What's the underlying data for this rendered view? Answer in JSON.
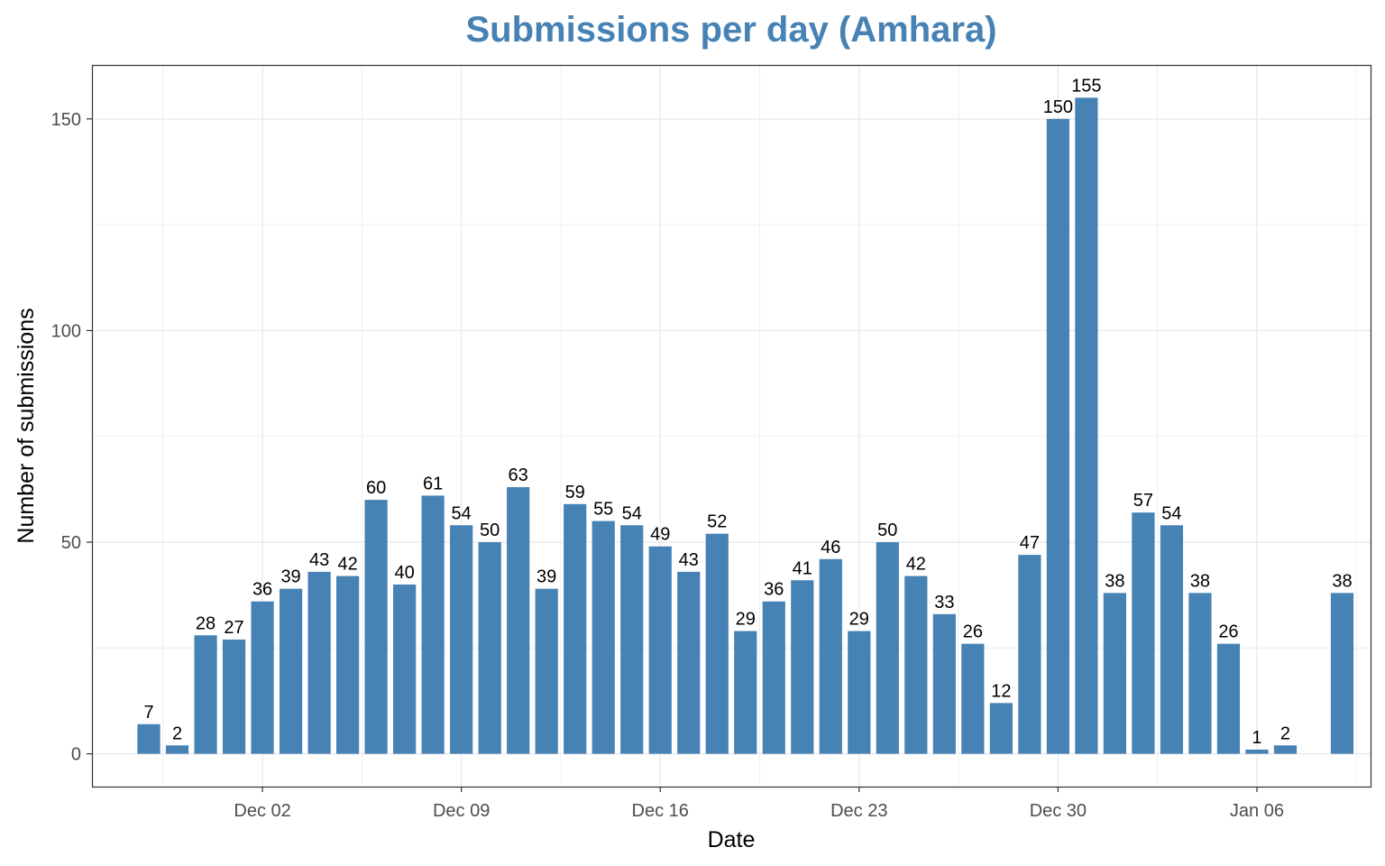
{
  "chart_data": {
    "type": "bar",
    "title": "Submissions per day (Amhara)",
    "xlabel": "Date",
    "ylabel": "Number of submissions",
    "x": [
      "2022-11-28",
      "2022-11-29",
      "2022-11-30",
      "2022-12-01",
      "2022-12-02",
      "2022-12-03",
      "2022-12-04",
      "2022-12-05",
      "2022-12-06",
      "2022-12-07",
      "2022-12-08",
      "2022-12-09",
      "2022-12-10",
      "2022-12-11",
      "2022-12-12",
      "2022-12-13",
      "2022-12-14",
      "2022-12-15",
      "2022-12-16",
      "2022-12-17",
      "2022-12-18",
      "2022-12-19",
      "2022-12-20",
      "2022-12-21",
      "2022-12-22",
      "2022-12-23",
      "2022-12-24",
      "2022-12-25",
      "2022-12-26",
      "2022-12-27",
      "2022-12-28",
      "2022-12-29",
      "2022-12-30",
      "2022-12-31",
      "2023-01-01",
      "2023-01-02",
      "2023-01-03",
      "2023-01-04",
      "2023-01-05",
      "2023-01-06",
      "2023-01-07",
      "2023-01-09"
    ],
    "values": [
      7,
      2,
      28,
      27,
      36,
      39,
      43,
      42,
      60,
      40,
      61,
      54,
      50,
      63,
      39,
      59,
      55,
      54,
      49,
      43,
      52,
      29,
      36,
      41,
      46,
      29,
      50,
      42,
      33,
      26,
      12,
      47,
      150,
      155,
      38,
      57,
      54,
      38,
      26,
      1,
      2,
      38
    ],
    "x_ticks": [
      {
        "date": "2022-12-02",
        "label": "Dec 02"
      },
      {
        "date": "2022-12-09",
        "label": "Dec 09"
      },
      {
        "date": "2022-12-16",
        "label": "Dec 16"
      },
      {
        "date": "2022-12-23",
        "label": "Dec 23"
      },
      {
        "date": "2022-12-30",
        "label": "Dec 30"
      },
      {
        "date": "2023-01-06",
        "label": "Jan 06"
      }
    ],
    "y_ticks": [
      0,
      50,
      100,
      150
    ],
    "ylim": [
      -7.75,
      162.75
    ],
    "xlim": [
      "2022-11-26",
      "2023-01-10"
    ],
    "grid": true,
    "colors": {
      "bar": "#4682b4",
      "title": "#4682b4",
      "grid": "#ebebeb",
      "panel_border": "#333333"
    }
  }
}
